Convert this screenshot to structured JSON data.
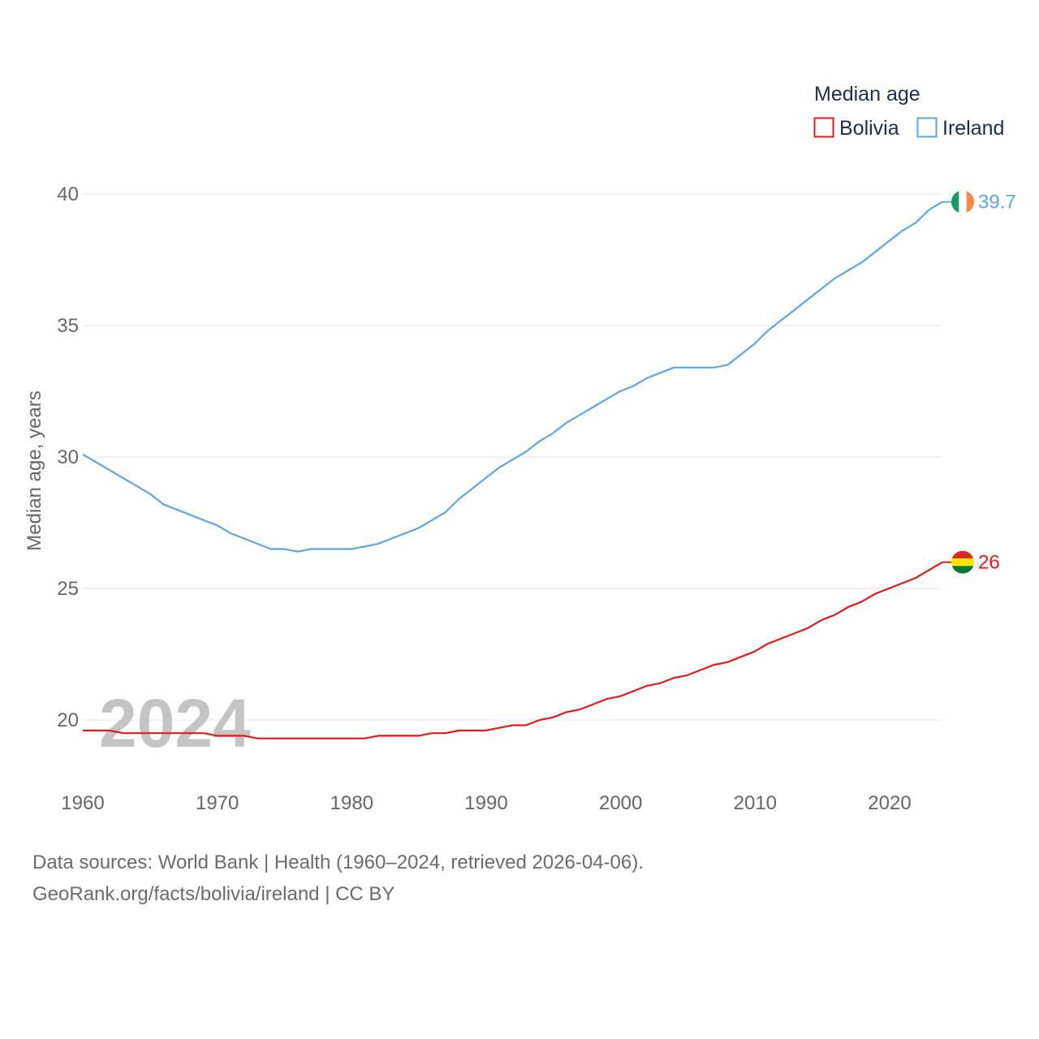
{
  "chart_data": {
    "type": "line",
    "legend_title": "Median age",
    "ylabel": "Median age, years",
    "xlabel": "",
    "xlim": [
      1960,
      2024
    ],
    "ylim": [
      18.5,
      41
    ],
    "x_ticks": [
      1960,
      1970,
      1980,
      1990,
      2000,
      2010,
      2020
    ],
    "y_ticks": [
      20,
      25,
      30,
      35,
      40
    ],
    "year_watermark": "2024",
    "series": [
      {
        "name": "Bolivia",
        "color": "#e41a1c",
        "end_label": "26",
        "flag": "bolivia",
        "x": [
          1960,
          1961,
          1962,
          1963,
          1964,
          1965,
          1966,
          1967,
          1968,
          1969,
          1970,
          1971,
          1972,
          1973,
          1974,
          1975,
          1976,
          1977,
          1978,
          1979,
          1980,
          1981,
          1982,
          1983,
          1984,
          1985,
          1986,
          1987,
          1988,
          1989,
          1990,
          1991,
          1992,
          1993,
          1994,
          1995,
          1996,
          1997,
          1998,
          1999,
          2000,
          2001,
          2002,
          2003,
          2004,
          2005,
          2006,
          2007,
          2008,
          2009,
          2010,
          2011,
          2012,
          2013,
          2014,
          2015,
          2016,
          2017,
          2018,
          2019,
          2020,
          2021,
          2022,
          2023,
          2024
        ],
        "values": [
          19.6,
          19.6,
          19.6,
          19.5,
          19.5,
          19.5,
          19.5,
          19.5,
          19.5,
          19.5,
          19.4,
          19.4,
          19.4,
          19.3,
          19.3,
          19.3,
          19.3,
          19.3,
          19.3,
          19.3,
          19.3,
          19.3,
          19.4,
          19.4,
          19.4,
          19.4,
          19.5,
          19.5,
          19.6,
          19.6,
          19.6,
          19.7,
          19.8,
          19.8,
          20.0,
          20.1,
          20.3,
          20.4,
          20.6,
          20.8,
          20.9,
          21.1,
          21.3,
          21.4,
          21.6,
          21.7,
          21.9,
          22.1,
          22.2,
          22.4,
          22.6,
          22.9,
          23.1,
          23.3,
          23.5,
          23.8,
          24.0,
          24.3,
          24.5,
          24.8,
          25.0,
          25.2,
          25.4,
          25.7,
          26.0
        ]
      },
      {
        "name": "Ireland",
        "color": "#5ea5e6",
        "end_label": "39.7",
        "flag": "ireland",
        "x": [
          1960,
          1961,
          1962,
          1963,
          1964,
          1965,
          1966,
          1967,
          1968,
          1969,
          1970,
          1971,
          1972,
          1973,
          1974,
          1975,
          1976,
          1977,
          1978,
          1979,
          1980,
          1981,
          1982,
          1983,
          1984,
          1985,
          1986,
          1987,
          1988,
          1989,
          1990,
          1991,
          1992,
          1993,
          1994,
          1995,
          1996,
          1997,
          1998,
          1999,
          2000,
          2001,
          2002,
          2003,
          2004,
          2005,
          2006,
          2007,
          2008,
          2009,
          2010,
          2011,
          2012,
          2013,
          2014,
          2015,
          2016,
          2017,
          2018,
          2019,
          2020,
          2021,
          2022,
          2023,
          2024
        ],
        "values": [
          30.1,
          29.8,
          29.5,
          29.2,
          28.9,
          28.6,
          28.2,
          28.0,
          27.8,
          27.6,
          27.4,
          27.1,
          26.9,
          26.7,
          26.5,
          26.5,
          26.4,
          26.5,
          26.5,
          26.5,
          26.5,
          26.6,
          26.7,
          26.9,
          27.1,
          27.3,
          27.6,
          27.9,
          28.4,
          28.8,
          29.2,
          29.6,
          29.9,
          30.2,
          30.6,
          30.9,
          31.3,
          31.6,
          31.9,
          32.2,
          32.5,
          32.7,
          33.0,
          33.2,
          33.4,
          33.4,
          33.4,
          33.4,
          33.5,
          33.9,
          34.3,
          34.8,
          35.2,
          35.6,
          36.0,
          36.4,
          36.8,
          37.1,
          37.4,
          37.8,
          38.2,
          38.6,
          38.9,
          39.4,
          39.7
        ]
      }
    ]
  },
  "source": {
    "line1": "Data sources: World Bank | Health (1960–2024, retrieved 2026-04-06).",
    "line2": "GeoRank.org/facts/bolivia/ireland | CC BY"
  }
}
